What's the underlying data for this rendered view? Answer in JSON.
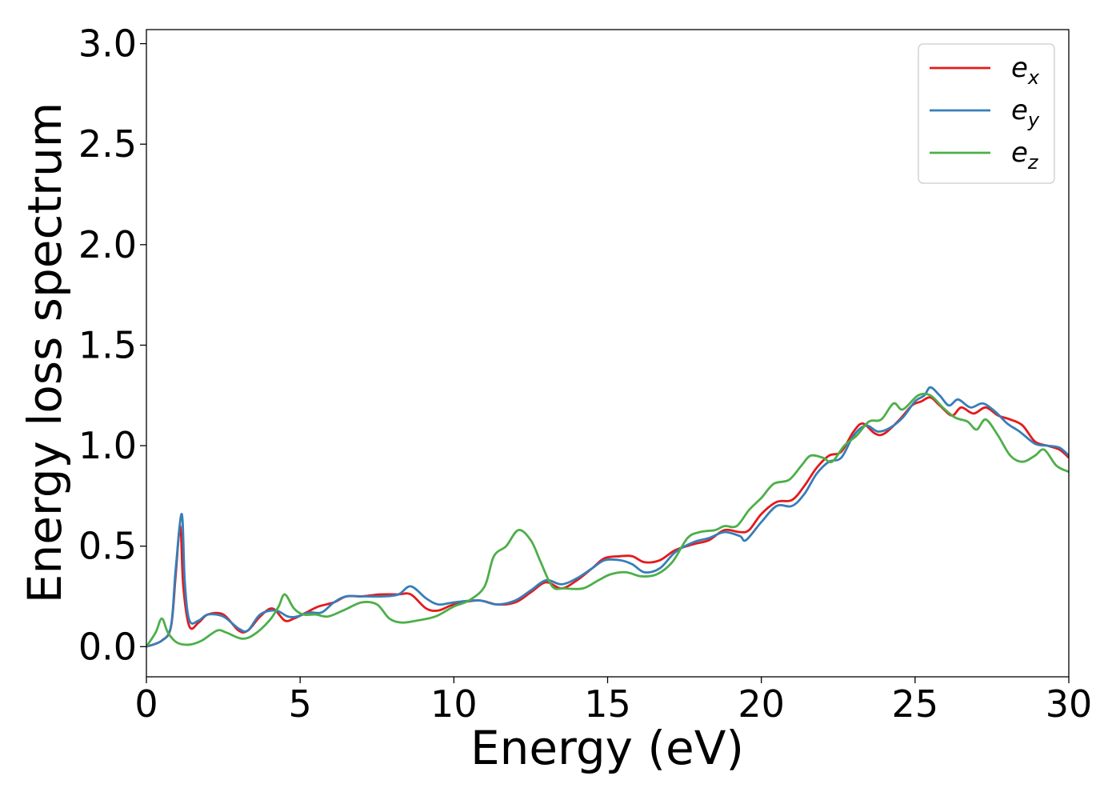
{
  "chart_data": {
    "type": "line",
    "xlabel": "Energy (eV)",
    "ylabel": "Energy loss spectrum",
    "xlim": [
      0,
      30
    ],
    "ylim": [
      -0.15,
      3.07
    ],
    "xticks": [
      "0",
      "5",
      "10",
      "15",
      "20",
      "25",
      "30"
    ],
    "yticks": [
      "0.0",
      "0.5",
      "1.0",
      "1.5",
      "2.0",
      "2.5",
      "3.0"
    ],
    "grid": false,
    "legend_position": "top-right",
    "series": [
      {
        "name": "e",
        "subscript": "x",
        "color": "#e41a1c",
        "points": [
          [
            0,
            0
          ],
          [
            0.5,
            0.03
          ],
          [
            0.8,
            0.1
          ],
          [
            0.95,
            0.35
          ],
          [
            1.1,
            0.6
          ],
          [
            1.2,
            0.3
          ],
          [
            1.4,
            0.1
          ],
          [
            1.7,
            0.12
          ],
          [
            2.0,
            0.16
          ],
          [
            2.5,
            0.16
          ],
          [
            3.0,
            0.08
          ],
          [
            3.3,
            0.08
          ],
          [
            3.7,
            0.15
          ],
          [
            4.1,
            0.19
          ],
          [
            4.5,
            0.13
          ],
          [
            4.8,
            0.14
          ],
          [
            5.2,
            0.17
          ],
          [
            5.6,
            0.2
          ],
          [
            6.1,
            0.22
          ],
          [
            6.5,
            0.25
          ],
          [
            7.0,
            0.25
          ],
          [
            7.6,
            0.26
          ],
          [
            8.2,
            0.26
          ],
          [
            8.6,
            0.26
          ],
          [
            9.1,
            0.19
          ],
          [
            9.5,
            0.18
          ],
          [
            10.0,
            0.21
          ],
          [
            10.8,
            0.23
          ],
          [
            11.4,
            0.21
          ],
          [
            12.0,
            0.22
          ],
          [
            12.5,
            0.27
          ],
          [
            13.0,
            0.32
          ],
          [
            13.5,
            0.29
          ],
          [
            14.0,
            0.33
          ],
          [
            14.5,
            0.39
          ],
          [
            14.9,
            0.44
          ],
          [
            15.4,
            0.45
          ],
          [
            15.8,
            0.45
          ],
          [
            16.2,
            0.42
          ],
          [
            16.7,
            0.43
          ],
          [
            17.2,
            0.48
          ],
          [
            17.8,
            0.51
          ],
          [
            18.3,
            0.53
          ],
          [
            18.8,
            0.58
          ],
          [
            19.3,
            0.57
          ],
          [
            19.6,
            0.58
          ],
          [
            20.0,
            0.66
          ],
          [
            20.5,
            0.72
          ],
          [
            21.0,
            0.73
          ],
          [
            21.4,
            0.8
          ],
          [
            21.8,
            0.89
          ],
          [
            22.2,
            0.95
          ],
          [
            22.6,
            0.97
          ],
          [
            23.0,
            1.07
          ],
          [
            23.3,
            1.11
          ],
          [
            23.7,
            1.06
          ],
          [
            24.0,
            1.06
          ],
          [
            24.5,
            1.13
          ],
          [
            24.9,
            1.2
          ],
          [
            25.2,
            1.22
          ],
          [
            25.5,
            1.24
          ],
          [
            25.8,
            1.2
          ],
          [
            26.2,
            1.15
          ],
          [
            26.5,
            1.19
          ],
          [
            26.9,
            1.16
          ],
          [
            27.3,
            1.19
          ],
          [
            27.7,
            1.15
          ],
          [
            28.1,
            1.13
          ],
          [
            28.5,
            1.1
          ],
          [
            28.9,
            1.02
          ],
          [
            29.3,
            1.0
          ],
          [
            29.7,
            0.98
          ],
          [
            30.0,
            0.94
          ]
        ]
      },
      {
        "name": "e",
        "subscript": "y",
        "color": "#377eb8",
        "points": [
          [
            0,
            0
          ],
          [
            0.5,
            0.03
          ],
          [
            0.8,
            0.1
          ],
          [
            0.95,
            0.38
          ],
          [
            1.15,
            0.66
          ],
          [
            1.25,
            0.32
          ],
          [
            1.4,
            0.13
          ],
          [
            1.7,
            0.13
          ],
          [
            2.0,
            0.16
          ],
          [
            2.5,
            0.15
          ],
          [
            3.0,
            0.09
          ],
          [
            3.3,
            0.08
          ],
          [
            3.7,
            0.16
          ],
          [
            4.2,
            0.18
          ],
          [
            4.6,
            0.15
          ],
          [
            4.9,
            0.15
          ],
          [
            5.3,
            0.17
          ],
          [
            5.7,
            0.17
          ],
          [
            6.1,
            0.22
          ],
          [
            6.5,
            0.25
          ],
          [
            7.1,
            0.25
          ],
          [
            7.7,
            0.25
          ],
          [
            8.2,
            0.26
          ],
          [
            8.6,
            0.3
          ],
          [
            9.1,
            0.24
          ],
          [
            9.5,
            0.21
          ],
          [
            10.0,
            0.22
          ],
          [
            10.8,
            0.23
          ],
          [
            11.4,
            0.21
          ],
          [
            12.0,
            0.23
          ],
          [
            12.5,
            0.28
          ],
          [
            13.0,
            0.33
          ],
          [
            13.5,
            0.31
          ],
          [
            14.0,
            0.34
          ],
          [
            14.5,
            0.39
          ],
          [
            14.9,
            0.43
          ],
          [
            15.4,
            0.43
          ],
          [
            15.8,
            0.41
          ],
          [
            16.2,
            0.37
          ],
          [
            16.7,
            0.39
          ],
          [
            17.2,
            0.47
          ],
          [
            17.8,
            0.52
          ],
          [
            18.3,
            0.54
          ],
          [
            18.8,
            0.57
          ],
          [
            19.3,
            0.55
          ],
          [
            19.5,
            0.53
          ],
          [
            20.0,
            0.62
          ],
          [
            20.5,
            0.7
          ],
          [
            21.0,
            0.7
          ],
          [
            21.4,
            0.76
          ],
          [
            21.8,
            0.86
          ],
          [
            22.2,
            0.92
          ],
          [
            22.6,
            0.94
          ],
          [
            23.0,
            1.05
          ],
          [
            23.4,
            1.1
          ],
          [
            23.8,
            1.07
          ],
          [
            24.2,
            1.09
          ],
          [
            24.6,
            1.14
          ],
          [
            25.0,
            1.22
          ],
          [
            25.3,
            1.25
          ],
          [
            25.5,
            1.29
          ],
          [
            25.8,
            1.25
          ],
          [
            26.1,
            1.2
          ],
          [
            26.4,
            1.23
          ],
          [
            26.8,
            1.19
          ],
          [
            27.2,
            1.21
          ],
          [
            27.6,
            1.17
          ],
          [
            28.0,
            1.11
          ],
          [
            28.4,
            1.07
          ],
          [
            28.9,
            1.01
          ],
          [
            29.3,
            1.0
          ],
          [
            29.7,
            0.99
          ],
          [
            30.0,
            0.95
          ]
        ]
      },
      {
        "name": "e",
        "subscript": "z",
        "color": "#4daf4a",
        "points": [
          [
            0,
            0
          ],
          [
            0.3,
            0.07
          ],
          [
            0.5,
            0.14
          ],
          [
            0.7,
            0.07
          ],
          [
            1.0,
            0.02
          ],
          [
            1.4,
            0.01
          ],
          [
            1.8,
            0.03
          ],
          [
            2.3,
            0.08
          ],
          [
            2.6,
            0.07
          ],
          [
            3.1,
            0.04
          ],
          [
            3.5,
            0.06
          ],
          [
            4.0,
            0.13
          ],
          [
            4.3,
            0.2
          ],
          [
            4.5,
            0.26
          ],
          [
            4.8,
            0.19
          ],
          [
            5.1,
            0.16
          ],
          [
            5.5,
            0.16
          ],
          [
            5.9,
            0.15
          ],
          [
            6.4,
            0.18
          ],
          [
            7.0,
            0.22
          ],
          [
            7.5,
            0.21
          ],
          [
            7.9,
            0.14
          ],
          [
            8.3,
            0.12
          ],
          [
            8.8,
            0.13
          ],
          [
            9.4,
            0.15
          ],
          [
            10.0,
            0.2
          ],
          [
            10.5,
            0.23
          ],
          [
            11.0,
            0.3
          ],
          [
            11.3,
            0.45
          ],
          [
            11.7,
            0.5
          ],
          [
            12.1,
            0.58
          ],
          [
            12.5,
            0.53
          ],
          [
            12.8,
            0.43
          ],
          [
            13.2,
            0.3
          ],
          [
            13.6,
            0.29
          ],
          [
            14.2,
            0.29
          ],
          [
            14.7,
            0.33
          ],
          [
            15.1,
            0.36
          ],
          [
            15.6,
            0.37
          ],
          [
            16.1,
            0.35
          ],
          [
            16.6,
            0.36
          ],
          [
            17.1,
            0.42
          ],
          [
            17.6,
            0.54
          ],
          [
            18.0,
            0.57
          ],
          [
            18.5,
            0.58
          ],
          [
            18.8,
            0.6
          ],
          [
            19.2,
            0.6
          ],
          [
            19.6,
            0.68
          ],
          [
            20.0,
            0.74
          ],
          [
            20.4,
            0.81
          ],
          [
            20.9,
            0.83
          ],
          [
            21.3,
            0.9
          ],
          [
            21.6,
            0.95
          ],
          [
            22.0,
            0.94
          ],
          [
            22.3,
            0.92
          ],
          [
            22.7,
            1.0
          ],
          [
            23.1,
            1.05
          ],
          [
            23.5,
            1.12
          ],
          [
            23.9,
            1.13
          ],
          [
            24.3,
            1.21
          ],
          [
            24.6,
            1.18
          ],
          [
            25.1,
            1.25
          ],
          [
            25.5,
            1.25
          ],
          [
            25.9,
            1.19
          ],
          [
            26.3,
            1.14
          ],
          [
            26.7,
            1.12
          ],
          [
            27.0,
            1.08
          ],
          [
            27.3,
            1.13
          ],
          [
            27.7,
            1.05
          ],
          [
            28.1,
            0.95
          ],
          [
            28.5,
            0.92
          ],
          [
            28.9,
            0.95
          ],
          [
            29.2,
            0.98
          ],
          [
            29.6,
            0.9
          ],
          [
            30.0,
            0.87
          ]
        ]
      }
    ]
  }
}
